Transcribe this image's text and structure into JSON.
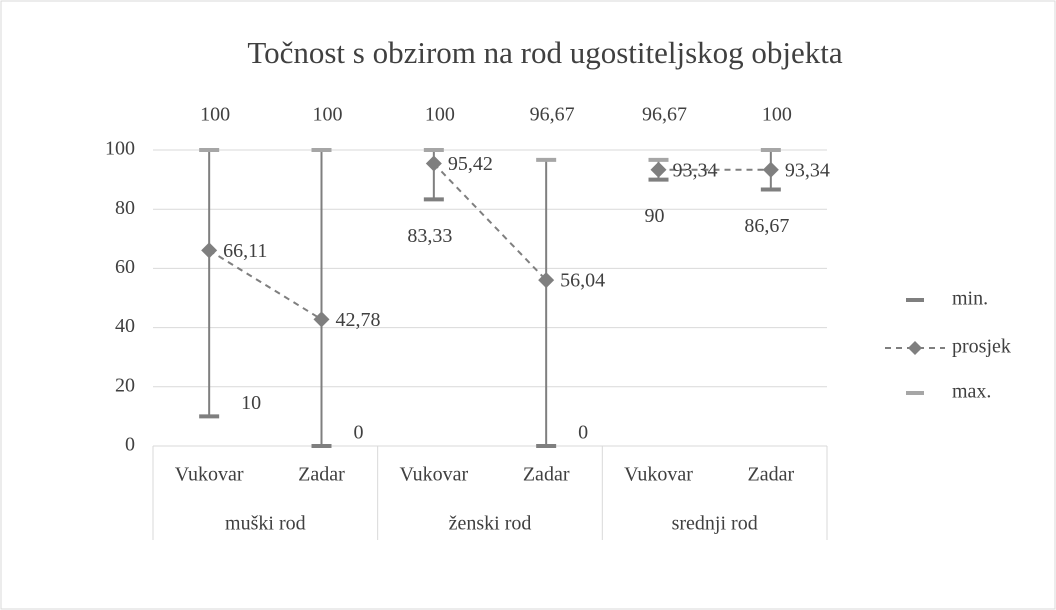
{
  "chart_data": {
    "type": "stock",
    "title": "Točnost s obzirom na rod ugostiteljskog objekta",
    "categories": [
      "Vukovar",
      "Zadar",
      "Vukovar",
      "Zadar",
      "Vukovar",
      "Zadar"
    ],
    "groups": [
      "muški rod",
      "ženski rod",
      "srednji rod"
    ],
    "series": [
      {
        "name": "min.",
        "color": "#7f7f7f",
        "values": [
          10,
          0,
          83.33,
          0,
          90,
          86.67
        ],
        "value_labels": [
          "10",
          "0",
          "83,33",
          "0",
          "90",
          "86,67"
        ]
      },
      {
        "name": "prosjek",
        "color": "#7f7f7f",
        "values": [
          66.11,
          42.78,
          95.42,
          56.04,
          93.34,
          93.34
        ],
        "value_labels": [
          "66,11",
          "42,78",
          "95,42",
          "56,04",
          "93,34",
          "93,34"
        ]
      },
      {
        "name": "max.",
        "color": "#a6a6a6",
        "values": [
          100,
          100,
          100,
          96.67,
          96.67,
          100
        ],
        "value_labels": [
          "100",
          "100",
          "100",
          "96,67",
          "96,67",
          "100"
        ]
      }
    ],
    "ylim": [
      0,
      100
    ],
    "yticks": [
      0,
      20,
      40,
      60,
      80,
      100
    ],
    "grid": true,
    "legend": "right"
  }
}
